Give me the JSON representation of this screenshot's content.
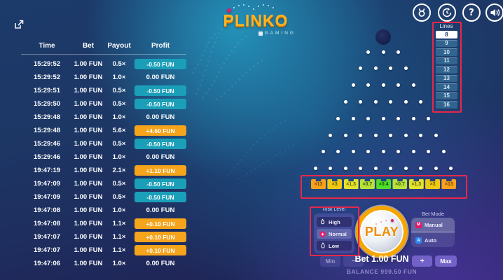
{
  "header": {
    "logo": {
      "title": "PLINKO",
      "subtitle": "GAMING"
    },
    "toolbar": [
      {
        "icon": "brand-bull-icon"
      },
      {
        "icon": "history-icon"
      },
      {
        "icon": "help-icon",
        "glyph": "?"
      },
      {
        "icon": "sound-icon"
      }
    ]
  },
  "history_table": {
    "columns": [
      "Time",
      "Bet",
      "Payout",
      "Profit"
    ],
    "rows": [
      {
        "time": "15:29:52",
        "bet": "1.00 FUN",
        "payout": "0.5×",
        "profit": "-0.50 FUN",
        "type": "loss"
      },
      {
        "time": "15:29:52",
        "bet": "1.00 FUN",
        "payout": "1.0×",
        "profit": "0.00 FUN",
        "type": "zero"
      },
      {
        "time": "15:29:51",
        "bet": "1.00 FUN",
        "payout": "0.5×",
        "profit": "-0.50 FUN",
        "type": "loss"
      },
      {
        "time": "15:29:50",
        "bet": "1.00 FUN",
        "payout": "0.5×",
        "profit": "-0.50 FUN",
        "type": "loss"
      },
      {
        "time": "15:29:48",
        "bet": "1.00 FUN",
        "payout": "1.0×",
        "profit": "0.00 FUN",
        "type": "zero"
      },
      {
        "time": "15:29:48",
        "bet": "1.00 FUN",
        "payout": "5.6×",
        "profit": "+4.60 FUN",
        "type": "win"
      },
      {
        "time": "15:29:46",
        "bet": "1.00 FUN",
        "payout": "0.5×",
        "profit": "-0.50 FUN",
        "type": "loss"
      },
      {
        "time": "15:29:46",
        "bet": "1.00 FUN",
        "payout": "1.0×",
        "profit": "0.00 FUN",
        "type": "zero"
      },
      {
        "time": "19:47:19",
        "bet": "1.00 FUN",
        "payout": "2.1×",
        "profit": "+1.10 FUN",
        "type": "win"
      },
      {
        "time": "19:47:09",
        "bet": "1.00 FUN",
        "payout": "0.5×",
        "profit": "-0.50 FUN",
        "type": "loss"
      },
      {
        "time": "19:47:09",
        "bet": "1.00 FUN",
        "payout": "0.5×",
        "profit": "-0.50 FUN",
        "type": "loss"
      },
      {
        "time": "19:47:08",
        "bet": "1.00 FUN",
        "payout": "1.0×",
        "profit": "0.00 FUN",
        "type": "zero"
      },
      {
        "time": "19:47:08",
        "bet": "1.00 FUN",
        "payout": "1.1×",
        "profit": "+0.10 FUN",
        "type": "win"
      },
      {
        "time": "19:47:07",
        "bet": "1.00 FUN",
        "payout": "1.1×",
        "profit": "+0.10 FUN",
        "type": "win"
      },
      {
        "time": "19:47:07",
        "bet": "1.00 FUN",
        "payout": "1.1×",
        "profit": "+0.10 FUN",
        "type": "win"
      },
      {
        "time": "19:47:06",
        "bet": "1.00 FUN",
        "payout": "1.0×",
        "profit": "0.00 FUN",
        "type": "zero"
      }
    ]
  },
  "board": {
    "peg_rows": [
      3,
      4,
      5,
      6,
      7,
      8,
      9,
      10
    ],
    "multipliers": [
      {
        "label": "×13",
        "bg": "#f7a11c",
        "fg": "#7a4a00"
      },
      {
        "label": "×3",
        "bg": "#eec911",
        "fg": "#6f5a00"
      },
      {
        "label": "×1.3",
        "bg": "#e4e22c",
        "fg": "#5f6000"
      },
      {
        "label": "×0.7",
        "bg": "#b8e23a",
        "fg": "#3f6300"
      },
      {
        "label": "×0.4",
        "bg": "#52de28",
        "fg": "#0e5c00"
      },
      {
        "label": "×0.7",
        "bg": "#b8e23a",
        "fg": "#3f6300"
      },
      {
        "label": "×1.3",
        "bg": "#e4e22c",
        "fg": "#5f6000"
      },
      {
        "label": "×3",
        "bg": "#eec911",
        "fg": "#6f5a00"
      },
      {
        "label": "×13",
        "bg": "#f7a11c",
        "fg": "#7a4a00"
      }
    ]
  },
  "lines_panel": {
    "label": "Lines",
    "options": [
      "8",
      "9",
      "10",
      "11",
      "12",
      "13",
      "14",
      "15",
      "16"
    ],
    "selected": "8"
  },
  "risk_panel": {
    "label": "Risk Level",
    "options": [
      {
        "label": "High",
        "icon": "flame-icon",
        "selected": false
      },
      {
        "label": "Normal",
        "icon": "fire-circle-icon",
        "selected": true
      },
      {
        "label": "Low",
        "icon": "drop-icon",
        "selected": false
      }
    ]
  },
  "controls": {
    "play_label": "PLAY",
    "bet_mode": {
      "label": "Bet Mode",
      "options": [
        {
          "label": "Manual",
          "badge": "M",
          "selected": true
        },
        {
          "label": "Auto",
          "badge": "A",
          "selected": false
        }
      ]
    },
    "bet_bar": {
      "min": "Min",
      "minus": "−",
      "bet_text": "Bet 1.00 FUN",
      "plus": "+",
      "max": "Max"
    },
    "balance": "BALANCE 999.50 FUN"
  },
  "annotations": {
    "color": "#e8274b",
    "highlighted": [
      "lines-panel",
      "multiplier-row",
      "risk-level-panel"
    ]
  },
  "colors": {
    "loss_badge": "#1b9fb9",
    "win_badge": "#f5a41c",
    "play_ring": "#f7a600",
    "accent_pink": "#e81a6e",
    "teal_glow": "#2496bc",
    "purple_zone": "#6040c4"
  }
}
